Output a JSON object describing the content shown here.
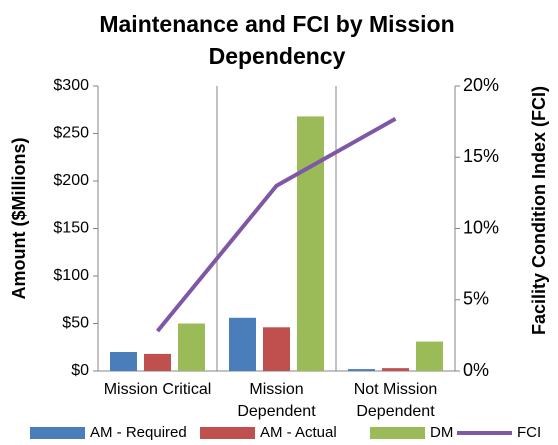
{
  "chart_data": {
    "type": "bar",
    "title": "Maintenance and FCI by Mission Dependency",
    "ylabel": "Amount ($Millions)",
    "y2label": "Facility Condition Index (FCI)",
    "categories": [
      "Mission Critical",
      "Mission Dependent",
      "Not Mission Dependent"
    ],
    "series": [
      {
        "name": "AM - Required",
        "color": "#4a7ebb",
        "values": [
          20,
          56,
          2
        ]
      },
      {
        "name": "AM - Actual",
        "color": "#c0504d",
        "values": [
          18,
          46,
          3
        ]
      },
      {
        "name": "DM",
        "color": "#9bbb59",
        "values": [
          50,
          268,
          31
        ]
      },
      {
        "name": "FCI",
        "color": "#7e57a6",
        "type": "line",
        "axis": "y2",
        "values": [
          2.8,
          13,
          17.7
        ]
      }
    ],
    "ylim": [
      0,
      300
    ],
    "yticks": [
      {
        "value": 0,
        "label": "$0"
      },
      {
        "value": 50,
        "label": "$50"
      },
      {
        "value": 100,
        "label": "$100"
      },
      {
        "value": 150,
        "label": "$150"
      },
      {
        "value": 200,
        "label": "$200"
      },
      {
        "value": 250,
        "label": "$250"
      },
      {
        "value": 300,
        "label": "$300"
      }
    ],
    "y2lim": [
      0,
      20
    ],
    "y2ticks": [
      {
        "value": 0,
        "label": "0%"
      },
      {
        "value": 5,
        "label": "5%"
      },
      {
        "value": 10,
        "label": "10%"
      },
      {
        "value": 15,
        "label": "15%"
      },
      {
        "value": 20,
        "label": "20%"
      }
    ],
    "legend": "bottom"
  }
}
